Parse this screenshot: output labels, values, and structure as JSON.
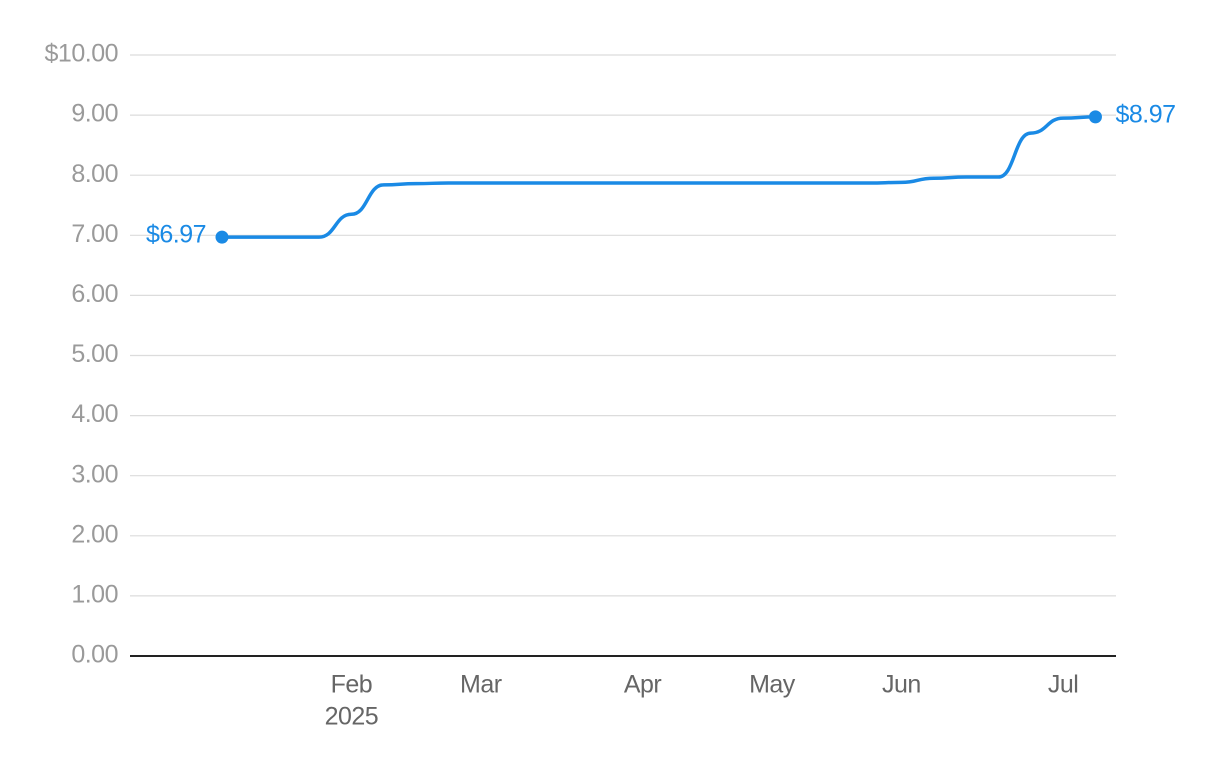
{
  "chart_data": {
    "type": "line",
    "categories": [
      null,
      null,
      null,
      null,
      "Feb",
      null,
      null,
      null,
      "Mar",
      null,
      null,
      null,
      null,
      "Apr",
      null,
      null,
      null,
      "May",
      null,
      null,
      null,
      "Jun",
      null,
      null,
      null,
      null,
      "Jul",
      null
    ],
    "x_year_label": "2025",
    "values": [
      6.97,
      6.97,
      6.97,
      6.97,
      7.35,
      7.84,
      7.86,
      7.87,
      7.87,
      7.87,
      7.87,
      7.87,
      7.87,
      7.87,
      7.87,
      7.87,
      7.87,
      7.87,
      7.87,
      7.87,
      7.87,
      7.88,
      7.95,
      7.97,
      7.97,
      8.7,
      8.95,
      8.97
    ],
    "value_labels": [
      "$6.97",
      null,
      null,
      null,
      null,
      null,
      null,
      null,
      null,
      null,
      null,
      null,
      null,
      null,
      null,
      null,
      null,
      null,
      null,
      null,
      null,
      null,
      null,
      null,
      null,
      null,
      null,
      "$8.97"
    ],
    "color": "#1a8ae5",
    "ylim": [
      0,
      10
    ],
    "yticks": [
      {
        "value": 0,
        "label": "0.00"
      },
      {
        "value": 1,
        "label": "1.00"
      },
      {
        "value": 2,
        "label": "2.00"
      },
      {
        "value": 3,
        "label": "3.00"
      },
      {
        "value": 4,
        "label": "4.00"
      },
      {
        "value": 5,
        "label": "5.00"
      },
      {
        "value": 6,
        "label": "6.00"
      },
      {
        "value": 7,
        "label": "7.00"
      },
      {
        "value": 8,
        "label": "8.00"
      },
      {
        "value": 9,
        "label": "9.00"
      },
      {
        "value": 10,
        "label": "$10.00"
      }
    ],
    "grid": true
  }
}
